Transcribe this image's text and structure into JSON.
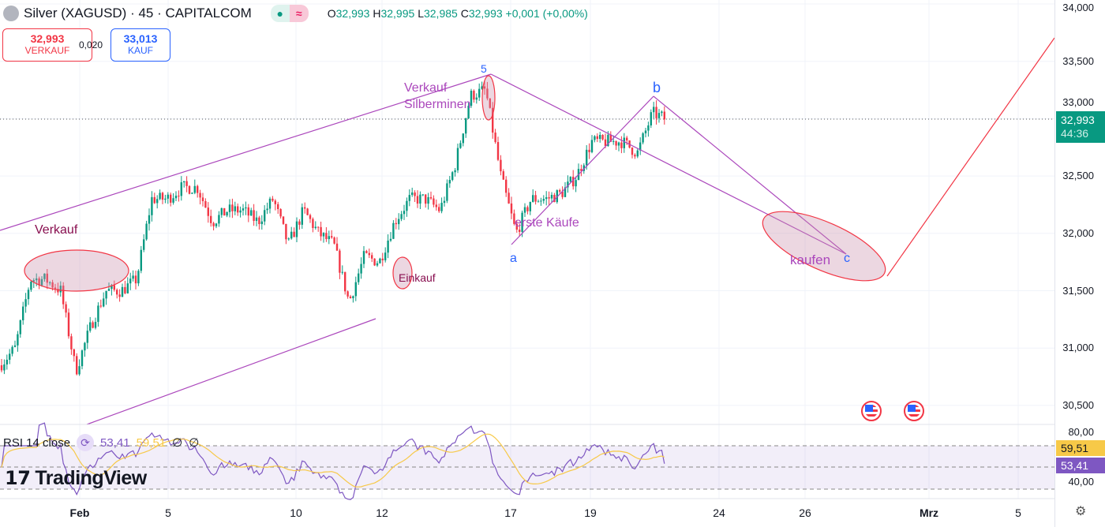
{
  "header": {
    "symbol": "Silver (XAGUSD) · 45 · CAPITALCOM",
    "market_open_icon": "dot",
    "wave_icon": "≈",
    "ohlc": {
      "o_label": "O",
      "o": "32,993",
      "h_label": "H",
      "h": "32,995",
      "l_label": "L",
      "l": "32,985",
      "c_label": "C",
      "c": "32,993",
      "change": "+0,001 (+0,00%)"
    }
  },
  "trade": {
    "sell_price": "32,993",
    "sell_label": "VERKAUF",
    "spread": "0,020",
    "buy_price": "33,013",
    "buy_label": "KAUF"
  },
  "price_axis": {
    "labels": [
      "34,000",
      "33,500",
      "33,000",
      "32,500",
      "32,000",
      "31,500",
      "31,000",
      "30,500"
    ],
    "current_price": "32,993",
    "countdown": "44:36"
  },
  "rsi": {
    "title": "RSI 14 close",
    "icon": "refresh",
    "value": "53,41",
    "ma_value": "59,51",
    "extra1": "∅",
    "extra2": "∅",
    "axis": [
      "80,00",
      "40,00"
    ],
    "tag_ma": "59,51",
    "tag_value": "53,41",
    "color": "#7e57c2",
    "ma_color": "#f7c948"
  },
  "time_axis": [
    {
      "label": "Feb",
      "bold": true
    },
    {
      "label": "5"
    },
    {
      "label": "10"
    },
    {
      "label": "12"
    },
    {
      "label": "17"
    },
    {
      "label": "19"
    },
    {
      "label": "24"
    },
    {
      "label": "26"
    },
    {
      "label": "Mrz",
      "bold": true
    },
    {
      "label": "5"
    }
  ],
  "annotations": {
    "verkauf": "Verkauf",
    "verkauf_silber": "Verkauf",
    "silberminen": "Silberminen",
    "einkauf": "Einkauf",
    "erste_kaeufe": "erste Käufe",
    "kaufen": "kaufen",
    "wave5": "5",
    "wave_a": "a",
    "wave_b": "b",
    "wave_c": "c"
  },
  "branding": "TradingView",
  "colors": {
    "up": "#089981",
    "down": "#f23645",
    "annotation": "#ab47bc"
  },
  "chart_data": {
    "type": "candlestick",
    "title": "Silver (XAGUSD) 45",
    "ylim": [
      30.5,
      34.0
    ],
    "ylabel": "Price",
    "approx_close_path": [
      30.85,
      31.0,
      31.6,
      31.6,
      31.5,
      30.8,
      31.2,
      31.5,
      31.5,
      31.6,
      32.3,
      32.3,
      32.4,
      32.4,
      32.1,
      32.2,
      32.2,
      32.1,
      32.3,
      31.9,
      32.2,
      32.0,
      31.9,
      31.4,
      31.8,
      31.75,
      32.1,
      32.3,
      32.3,
      32.2,
      32.6,
      33.2,
      33.25,
      32.5,
      32.0,
      32.3,
      32.3,
      32.35,
      32.5,
      32.8,
      32.8,
      32.8,
      32.7,
      33.05,
      32.99
    ],
    "last_close": 32.993,
    "rsi_last": 53.41,
    "rsi_ma_last": 59.51
  }
}
